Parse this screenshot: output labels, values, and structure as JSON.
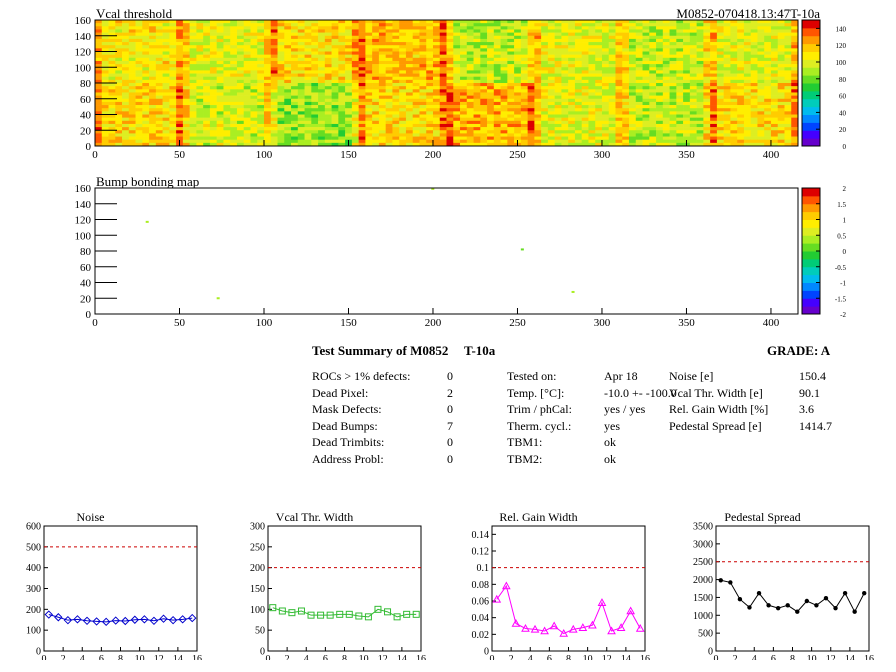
{
  "top_map": {
    "title": "Vcal threshold",
    "module_id": "M0852-070418.13:47T-10a",
    "x_ticks": [
      "0",
      "50",
      "100",
      "150",
      "200",
      "250",
      "300",
      "350",
      "400"
    ],
    "y_ticks": [
      "0",
      "20",
      "40",
      "60",
      "80",
      "100",
      "120",
      "140",
      "160"
    ],
    "colorbar_ticks": [
      "0",
      "20",
      "40",
      "60",
      "80",
      "100",
      "120",
      "140"
    ]
  },
  "bump_map": {
    "title": "Bump bonding map",
    "x_ticks": [
      "0",
      "50",
      "100",
      "150",
      "200",
      "250",
      "300",
      "350",
      "400"
    ],
    "y_ticks": [
      "0",
      "20",
      "40",
      "60",
      "80",
      "100",
      "120",
      "140",
      "160"
    ],
    "colorbar_ticks": [
      "-2",
      "-1.5",
      "-1",
      "-0.5",
      "0",
      "0.5",
      "1",
      "1.5",
      "2"
    ]
  },
  "summary": {
    "title": "Test Summary of M0852",
    "temp_label": "T-10a",
    "grade": "GRADE:  A",
    "left_rows": [
      {
        "label": "ROCs > 1% defects:",
        "value": "0"
      },
      {
        "label": "Dead Pixel:",
        "value": "2"
      },
      {
        "label": "Mask Defects:",
        "value": "0"
      },
      {
        "label": "Dead Bumps:",
        "value": "7"
      },
      {
        "label": "Dead Trimbits:",
        "value": "0"
      },
      {
        "label": "Address Probl:",
        "value": "0"
      }
    ],
    "mid_rows": [
      {
        "label": "Tested on:",
        "value": "Apr 18"
      },
      {
        "label": "Temp. [°C]:",
        "value": "-10.0 +- -100.0"
      },
      {
        "label": "Trim / phCal:",
        "value": "yes / yes"
      },
      {
        "label": "Therm. cycl.:",
        "value": "yes"
      },
      {
        "label": "TBM1:",
        "value": "ok"
      },
      {
        "label": "TBM2:",
        "value": "ok"
      }
    ],
    "right_rows": [
      {
        "label": "Noise [e]",
        "value": "150.4"
      },
      {
        "label": "Vcal Thr. Width [e]",
        "value": "90.1"
      },
      {
        "label": "Rel. Gain Width [%]",
        "value": "3.6"
      },
      {
        "label": "Pedestal Spread [e]",
        "value": "1414.7"
      }
    ]
  },
  "chart_data": [
    {
      "type": "heatmap",
      "title": "Vcal threshold",
      "xlim": [
        0,
        416
      ],
      "ylim": [
        0,
        160
      ],
      "color_range": [
        0,
        150
      ],
      "grid_cols": 8,
      "grid_rows": 2,
      "block_values_top_row": [
        108,
        100,
        110,
        118,
        95,
        100,
        96,
        100
      ],
      "block_values_bottom_row": [
        112,
        98,
        88,
        112,
        120,
        100,
        94,
        110
      ]
    },
    {
      "type": "heatmap",
      "title": "Bump bonding map",
      "xlim": [
        0,
        416
      ],
      "ylim": [
        0,
        160
      ],
      "color_range": [
        -2,
        2
      ],
      "points": [
        {
          "x": 30,
          "y": 117,
          "value": 0.3
        },
        {
          "x": 72,
          "y": 20,
          "value": 0.3
        },
        {
          "x": 199,
          "y": 159,
          "value": 0.3
        },
        {
          "x": 252,
          "y": 82,
          "value": 0.1
        },
        {
          "x": 282,
          "y": 28,
          "value": 0.3
        }
      ]
    },
    {
      "type": "line",
      "title": "Noise",
      "color": "#0000cc",
      "marker": "diamond",
      "xlim": [
        0,
        16
      ],
      "ylim": [
        0,
        600
      ],
      "x_ticks": [
        "0",
        "2",
        "4",
        "6",
        "8",
        "10",
        "12",
        "14",
        "16"
      ],
      "y_ticks": [
        "0",
        "100",
        "200",
        "300",
        "400",
        "500",
        "600"
      ],
      "threshold": 500,
      "x": [
        0.5,
        1.5,
        2.5,
        3.5,
        4.5,
        5.5,
        6.5,
        7.5,
        8.5,
        9.5,
        10.5,
        11.5,
        12.5,
        13.5,
        14.5,
        15.5
      ],
      "values": [
        175,
        162,
        148,
        152,
        145,
        142,
        140,
        146,
        144,
        150,
        152,
        145,
        155,
        148,
        152,
        158
      ]
    },
    {
      "type": "line",
      "title": "Vcal Thr. Width",
      "color": "#33bb33",
      "marker": "square",
      "xlim": [
        0,
        16
      ],
      "ylim": [
        0,
        300
      ],
      "x_ticks": [
        "0",
        "2",
        "4",
        "6",
        "8",
        "10",
        "12",
        "14",
        "16"
      ],
      "y_ticks": [
        "0",
        "50",
        "100",
        "150",
        "200",
        "250",
        "300"
      ],
      "threshold": 200,
      "x": [
        0.5,
        1.5,
        2.5,
        3.5,
        4.5,
        5.5,
        6.5,
        7.5,
        8.5,
        9.5,
        10.5,
        11.5,
        12.5,
        13.5,
        14.5,
        15.5
      ],
      "values": [
        104,
        96,
        92,
        96,
        86,
        86,
        86,
        88,
        88,
        84,
        82,
        100,
        94,
        82,
        88,
        88
      ]
    },
    {
      "type": "line",
      "title": "Rel. Gain Width",
      "color": "#ff00ff",
      "marker": "triangle",
      "xlim": [
        0,
        16
      ],
      "ylim": [
        0,
        0.15
      ],
      "x_ticks": [
        "0",
        "2",
        "4",
        "6",
        "8",
        "10",
        "12",
        "14",
        "16"
      ],
      "y_ticks": [
        "0",
        "0.02",
        "0.04",
        "0.06",
        "0.08",
        "0.1",
        "0.12",
        "0.14"
      ],
      "threshold": 0.1,
      "x": [
        0.5,
        1.5,
        2.5,
        3.5,
        4.5,
        5.5,
        6.5,
        7.5,
        8.5,
        9.5,
        10.5,
        11.5,
        12.5,
        13.5,
        14.5,
        15.5
      ],
      "values": [
        0.062,
        0.078,
        0.033,
        0.027,
        0.026,
        0.024,
        0.03,
        0.021,
        0.026,
        0.028,
        0.031,
        0.058,
        0.024,
        0.028,
        0.048,
        0.027
      ]
    },
    {
      "type": "line",
      "title": "Pedestal Spread",
      "color": "#000000",
      "marker": "circle",
      "xlim": [
        0,
        16
      ],
      "ylim": [
        0,
        3500
      ],
      "x_ticks": [
        "0",
        "2",
        "4",
        "6",
        "8",
        "10",
        "12",
        "14",
        "16"
      ],
      "y_ticks": [
        "0",
        "500",
        "1000",
        "1500",
        "2000",
        "2500",
        "3000",
        "3500"
      ],
      "threshold": 2500,
      "x": [
        0.5,
        1.5,
        2.5,
        3.5,
        4.5,
        5.5,
        6.5,
        7.5,
        8.5,
        9.5,
        10.5,
        11.5,
        12.5,
        13.5,
        14.5,
        15.5
      ],
      "values": [
        1980,
        1920,
        1450,
        1220,
        1620,
        1280,
        1200,
        1280,
        1100,
        1400,
        1280,
        1480,
        1200,
        1620,
        1100,
        1620
      ]
    }
  ]
}
